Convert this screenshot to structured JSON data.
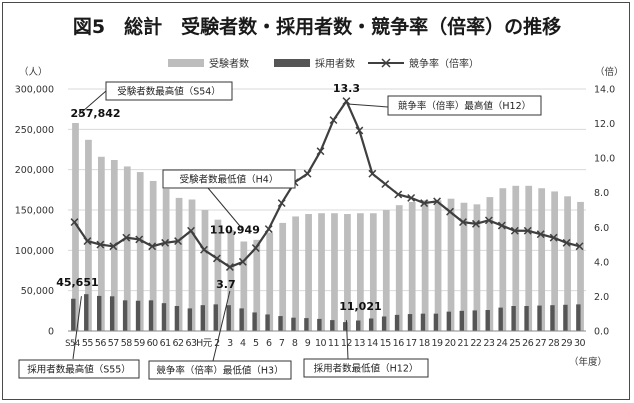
{
  "chart_data": {
    "type": "bar",
    "title": "図5　総計　受験者数・採用者数・競争率（倍率）の推移",
    "y_left_unit": "（人）",
    "y_right_unit": "（倍）",
    "x_unit": "（年度）",
    "y_left_lim": [
      0,
      300000
    ],
    "y_right_lim": [
      0,
      14
    ],
    "y_left_ticks": [
      "0",
      "50,000",
      "100,000",
      "150,000",
      "200,000",
      "250,000",
      "300,000"
    ],
    "y_right_ticks": [
      "0.0",
      "2.0",
      "4.0",
      "6.0",
      "8.0",
      "10.0",
      "12.0",
      "14.0"
    ],
    "grid": true,
    "legend_position": "top",
    "categories": [
      "S54",
      "55",
      "56",
      "57",
      "58",
      "59",
      "60",
      "61",
      "62",
      "63",
      "H元",
      "2",
      "3",
      "4",
      "5",
      "6",
      "7",
      "8",
      "9",
      "10",
      "11",
      "12",
      "13",
      "14",
      "15",
      "16",
      "17",
      "18",
      "19",
      "20",
      "21",
      "22",
      "23",
      "24",
      "25",
      "26",
      "27",
      "28",
      "29",
      "30"
    ],
    "series": [
      {
        "name": "受験者数",
        "kind": "bar",
        "axis": "left",
        "color": "#bdbdbd",
        "values": [
          257842,
          237000,
          216000,
          212000,
          204000,
          197000,
          186000,
          176000,
          165000,
          163000,
          150000,
          138000,
          125000,
          110949,
          113000,
          122000,
          134000,
          142000,
          145000,
          146000,
          146000,
          145000,
          146000,
          146000,
          150000,
          156000,
          160000,
          162000,
          162000,
          164000,
          159000,
          157000,
          166000,
          177000,
          180000,
          180000,
          177000,
          173000,
          167000,
          160000
        ]
      },
      {
        "name": "採用者数",
        "kind": "bar",
        "axis": "left",
        "color": "#555555",
        "values": [
          40000,
          45651,
          43500,
          43000,
          38000,
          37500,
          38000,
          34500,
          31000,
          28000,
          32000,
          33000,
          32000,
          28000,
          23000,
          20500,
          18500,
          16500,
          16000,
          15000,
          13500,
          11021,
          13000,
          15500,
          18000,
          20000,
          21000,
          21500,
          21500,
          24000,
          25000,
          25500,
          26000,
          29000,
          31000,
          31000,
          31500,
          32000,
          32500,
          33000
        ]
      },
      {
        "name": "競争率（倍率）",
        "kind": "line",
        "axis": "right",
        "color": "#3f3f3f",
        "values": [
          6.3,
          5.2,
          5.0,
          4.9,
          5.4,
          5.3,
          4.9,
          5.1,
          5.2,
          5.8,
          4.7,
          4.2,
          3.7,
          4.0,
          4.8,
          5.9,
          7.4,
          8.6,
          9.1,
          10.4,
          12.2,
          13.3,
          11.6,
          9.1,
          8.5,
          7.9,
          7.7,
          7.4,
          7.5,
          6.9,
          6.3,
          6.2,
          6.4,
          6.1,
          5.8,
          5.8,
          5.6,
          5.4,
          5.1,
          4.9
        ]
      }
    ],
    "annotations": [
      {
        "id": "applicants-max",
        "category": "S54",
        "value_label": "257,842",
        "label": "受験者数最高値（S54）"
      },
      {
        "id": "applicants-min",
        "category": "4",
        "value_label": "110,949",
        "label": "受験者数最低値（H4）"
      },
      {
        "id": "hires-max",
        "category": "55",
        "value_label": "45,651",
        "label": "採用者数最高値（S55）"
      },
      {
        "id": "hires-min",
        "category": "12",
        "value_label": "11,021",
        "label": "採用者数最低値（H12）"
      },
      {
        "id": "ratio-max",
        "category": "12",
        "value_label": "13.3",
        "label": "競争率（倍率）最高値（H12）"
      },
      {
        "id": "ratio-min",
        "category": "3",
        "value_label": "3.7",
        "label": "競争率（倍率）最低値（H3）"
      }
    ]
  }
}
